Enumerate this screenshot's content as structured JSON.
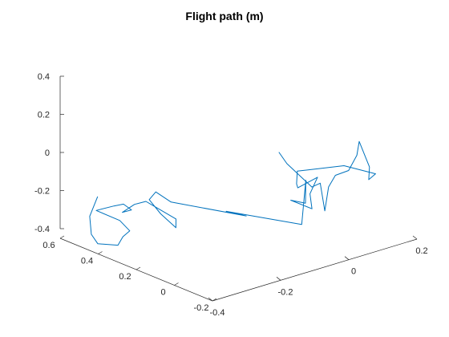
{
  "chart_data": {
    "type": "line",
    "projection": "3d",
    "title": "Flight path (m)",
    "xlabel": "",
    "ylabel": "",
    "zlabel": "",
    "x_ticks": [
      "-0.4",
      "-0.2",
      "0",
      "0.2"
    ],
    "y_ticks": [
      "-0.2",
      "0",
      "0.2",
      "0.4",
      "0.6"
    ],
    "z_ticks": [
      "-0.4",
      "-0.2",
      "0",
      "0.2",
      "0.4"
    ],
    "xlim": [
      -0.4,
      0.2
    ],
    "ylim": [
      -0.2,
      0.6
    ],
    "zlim": [
      -0.4,
      0.4
    ],
    "grid": false,
    "line_color": "#0072BD",
    "series": [
      {
        "x": [
          -0.06,
          -0.07,
          -0.05,
          -0.03,
          0.0,
          -0.02,
          0.03,
          0.05,
          0.1,
          0.13,
          0.12,
          0.15,
          0.12,
          0.14,
          0.12,
          0.05,
          0.02,
          -0.01,
          0.02,
          -0.03,
          -0.08,
          -0.12,
          -0.06,
          -0.02,
          -0.06,
          -0.22,
          -0.15,
          -0.22,
          -0.22,
          -0.2,
          -0.2,
          -0.2,
          -0.25,
          -0.26,
          -0.26,
          -0.29,
          -0.28,
          -0.27,
          -0.27,
          -0.35,
          -0.32,
          -0.33,
          -0.35,
          -0.37,
          -0.39,
          -0.37,
          -0.33,
          -0.29
        ],
        "y": [
          0.06,
          0.0,
          -0.03,
          -0.06,
          -0.05,
          -0.11,
          -0.04,
          -0.04,
          -0.02,
          -0.01,
          -0.04,
          -0.04,
          -0.09,
          -0.09,
          0.04,
          0.16,
          0.11,
          0.05,
          0.0,
          -0.05,
          -0.15,
          -0.11,
          -0.08,
          -0.01,
          -0.06,
          0.05,
          0.07,
          0.34,
          0.42,
          0.49,
          0.43,
          0.35,
          0.26,
          0.4,
          0.46,
          0.47,
          0.44,
          0.5,
          0.55,
          0.5,
          0.43,
          0.36,
          0.36,
          0.35,
          0.42,
          0.49,
          0.57,
          0.6
        ],
        "z": [
          0.09,
          0.06,
          0.0,
          -0.06,
          -0.06,
          -0.17,
          -0.1,
          -0.05,
          -0.06,
          0.0,
          0.09,
          -0.06,
          -0.09,
          -0.07,
          -0.07,
          -0.11,
          -0.14,
          -0.12,
          -0.06,
          -0.1,
          -0.11,
          -0.06,
          -0.12,
          -0.05,
          -0.24,
          -0.13,
          -0.2,
          -0.2,
          -0.18,
          -0.26,
          -0.31,
          -0.35,
          -0.24,
          -0.2,
          -0.24,
          -0.27,
          -0.25,
          -0.25,
          -0.28,
          -0.24,
          -0.28,
          -0.3,
          -0.32,
          -0.35,
          -0.36,
          -0.35,
          -0.31,
          -0.24
        ]
      }
    ]
  }
}
